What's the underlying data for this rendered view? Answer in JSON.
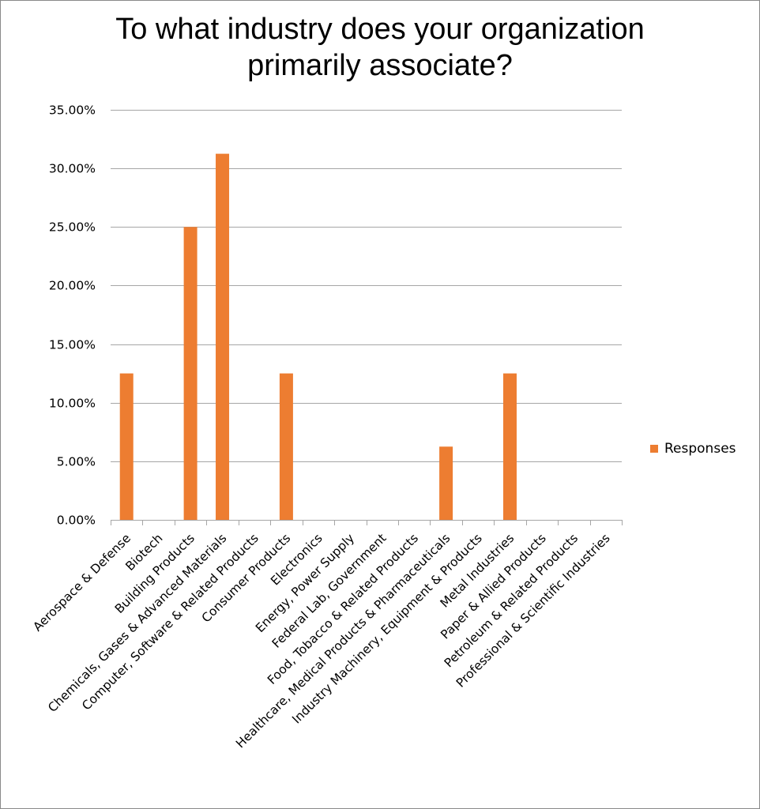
{
  "chart_data": {
    "type": "bar",
    "title_lines": [
      "To what industry does your organization",
      "primarily associate?"
    ],
    "categories": [
      "Aerospace & Defense",
      "Biotech",
      "Building Products",
      "Chemicals, Gases & Advanced Materials",
      "Computer, Software & Related Products",
      "Consumer Products",
      "Electronics",
      "Energy, Power Supply",
      "Federal Lab, Government",
      "Food, Tobacco & Related Products",
      "Healthcare, Medical Products & Pharmaceuticals",
      "Industry Machinery, Equipment & Products",
      "Metal Industries",
      "Paper & Allied Products",
      "Petroleum & Related Products",
      "Professional & Scientific Industries"
    ],
    "series": [
      {
        "name": "Responses",
        "values": [
          12.5,
          0,
          25.0,
          31.25,
          0,
          12.5,
          0,
          0,
          0,
          0,
          6.25,
          0,
          12.5,
          0,
          0,
          0
        ],
        "color": "#ED7D31"
      }
    ],
    "ylim": [
      0,
      35
    ],
    "y_ticks": [
      0,
      5,
      10,
      15,
      20,
      25,
      30,
      35
    ],
    "y_tick_labels": [
      "0.00%",
      "5.00%",
      "10.00%",
      "15.00%",
      "20.00%",
      "25.00%",
      "30.00%",
      "35.00%"
    ],
    "grid": true,
    "legend_position": "right",
    "colors": {
      "grid": "#a6a6a6",
      "axis": "#a6a6a6"
    }
  }
}
